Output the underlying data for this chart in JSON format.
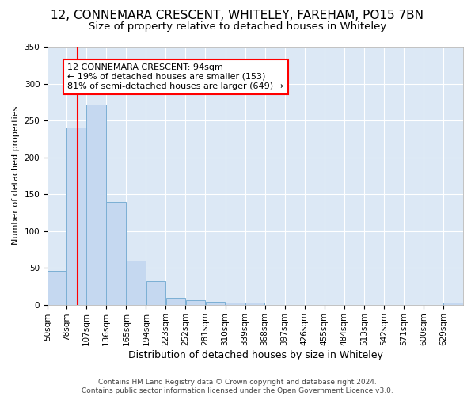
{
  "title": "12, CONNEMARA CRESCENT, WHITELEY, FAREHAM, PO15 7BN",
  "subtitle": "Size of property relative to detached houses in Whiteley",
  "xlabel": "Distribution of detached houses by size in Whiteley",
  "ylabel": "Number of detached properties",
  "footer_line1": "Contains HM Land Registry data © Crown copyright and database right 2024.",
  "footer_line2": "Contains public sector information licensed under the Open Government Licence v3.0.",
  "bins": [
    "50sqm",
    "78sqm",
    "107sqm",
    "136sqm",
    "165sqm",
    "194sqm",
    "223sqm",
    "252sqm",
    "281sqm",
    "310sqm",
    "339sqm",
    "368sqm",
    "397sqm",
    "426sqm",
    "455sqm",
    "484sqm",
    "513sqm",
    "542sqm",
    "571sqm",
    "600sqm",
    "629sqm"
  ],
  "bar_values": [
    46,
    240,
    271,
    139,
    60,
    32,
    9,
    6,
    4,
    3,
    3,
    0,
    0,
    0,
    0,
    0,
    0,
    0,
    0,
    0,
    3
  ],
  "bar_color": "#c5d8f0",
  "bar_edge_color": "#7bafd4",
  "bin_edges_numeric": [
    50,
    78,
    107,
    136,
    165,
    194,
    223,
    252,
    281,
    310,
    339,
    368,
    397,
    426,
    455,
    484,
    513,
    542,
    571,
    600,
    629,
    658
  ],
  "property_sqm": 94,
  "annotation_text": "12 CONNEMARA CRESCENT: 94sqm\n← 19% of detached houses are smaller (153)\n81% of semi-detached houses are larger (649) →",
  "annotation_box_color": "white",
  "annotation_box_edge": "red",
  "vline_color": "red",
  "ylim": [
    0,
    350
  ],
  "yticks": [
    0,
    50,
    100,
    150,
    200,
    250,
    300,
    350
  ],
  "plot_bg_color": "#dce8f5",
  "grid_color": "white",
  "title_fontsize": 11,
  "subtitle_fontsize": 9.5,
  "xlabel_fontsize": 9,
  "ylabel_fontsize": 8,
  "tick_fontsize": 7.5,
  "annotation_fontsize": 8,
  "footer_fontsize": 6.5
}
